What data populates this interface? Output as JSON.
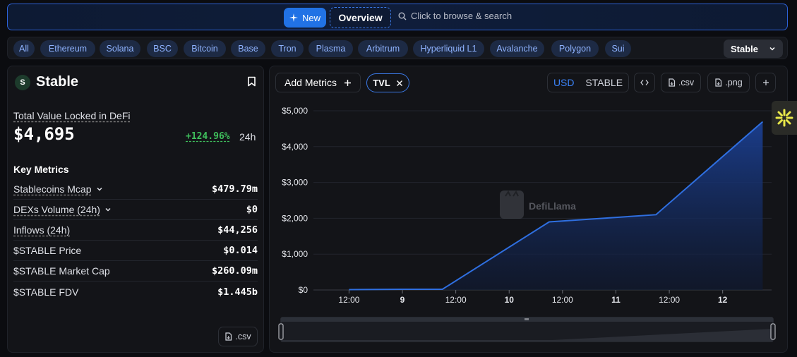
{
  "topbar": {
    "new_label": "New",
    "overview_label": "Overview",
    "search_placeholder": "Click to browse & search"
  },
  "chains": {
    "items": [
      "All",
      "Ethereum",
      "Solana",
      "BSC",
      "Bitcoin",
      "Base",
      "Tron",
      "Plasma",
      "Arbitrum",
      "Hyperliquid L1",
      "Avalanche",
      "Polygon",
      "Sui"
    ],
    "selected": "Stable"
  },
  "protocol": {
    "name": "Stable",
    "logo_text": "S",
    "tvl_label": "Total Value Locked in DeFi",
    "tvl_value": "$4,695",
    "tvl_change": "+124.96%",
    "tvl_period": "24h",
    "key_metrics_title": "Key Metrics",
    "metrics": [
      {
        "label": "Stablecoins Mcap",
        "value": "$479.79m"
      },
      {
        "label": "DEXs Volume (24h)",
        "value": "$0"
      },
      {
        "label": "Inflows (24h)",
        "value": "$44,256"
      },
      {
        "label": "$STABLE Price",
        "value": "$0.014"
      },
      {
        "label": "$STABLE Market Cap",
        "value": "$260.09m"
      },
      {
        "label": "$STABLE FDV",
        "value": "$1.445b"
      }
    ],
    "csv_label": ".csv"
  },
  "chart_toolbar": {
    "add_metrics_label": "Add Metrics",
    "chip_label": "TVL",
    "unit_usd": "USD",
    "unit_stable": "STABLE",
    "csv_label": ".csv",
    "png_label": ".png"
  },
  "watermark": "DefiLlama",
  "colors": {
    "accent": "#2172e5",
    "line": "#2f6fe0",
    "positive": "#3fbf5c"
  },
  "chart_data": {
    "type": "area",
    "x": [
      "8 12:00",
      "9 00:00",
      "9 09:00",
      "10 09:00",
      "11 09:00",
      "12 09:00"
    ],
    "x_hours": [
      -12,
      0,
      9,
      33,
      57,
      81
    ],
    "values": [
      10,
      20,
      20,
      1900,
      2100,
      4695
    ],
    "x_tick_labels": [
      "12:00",
      "9",
      "12:00",
      "10",
      "12:00",
      "11",
      "12:00",
      "12"
    ],
    "x_tick_hours": [
      -12,
      0,
      12,
      24,
      36,
      48,
      60,
      72
    ],
    "x_tick_bold": [
      false,
      true,
      false,
      true,
      false,
      true,
      false,
      true
    ],
    "y_ticks": [
      0,
      1000,
      2000,
      3000,
      4000,
      5000
    ],
    "y_tick_labels": [
      "$0",
      "$1,000",
      "$2,000",
      "$3,000",
      "$4,000",
      "$5,000"
    ],
    "ylim": [
      0,
      5000
    ],
    "xlim_hours": [
      -20,
      83
    ],
    "grid": true
  }
}
